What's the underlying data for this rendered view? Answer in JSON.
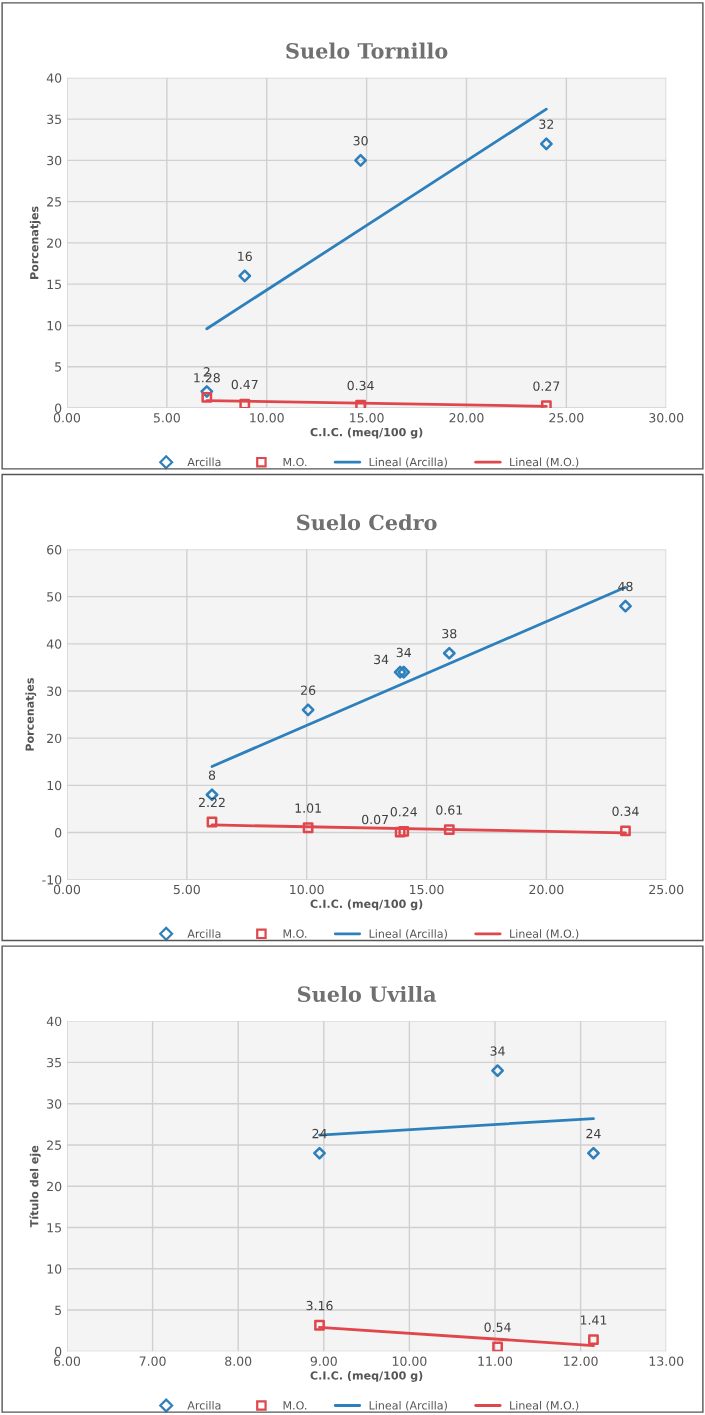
{
  "chart_data": [
    {
      "type": "scatter",
      "title": "Suelo Tornillo",
      "xlabel": "C.I.C. (meq/100 g)",
      "ylabel": "Porcenatjes",
      "xlim": [
        0,
        30
      ],
      "xticks": [
        {
          "value": 0,
          "label": "0.00"
        },
        {
          "value": 5,
          "label": "5.00"
        },
        {
          "value": 10,
          "label": "10.00"
        },
        {
          "value": 15,
          "label": "15.00"
        },
        {
          "value": 20,
          "label": "20.00"
        },
        {
          "value": 25,
          "label": "25.00"
        },
        {
          "value": 30,
          "label": "30.00"
        }
      ],
      "ylim": [
        0,
        40
      ],
      "yticks": [
        0,
        5,
        10,
        15,
        20,
        25,
        30,
        35,
        40
      ],
      "grid": true,
      "legend": "bottom",
      "series": [
        {
          "name": "Arcilla",
          "marker": "diamond",
          "color": "#2e80bd",
          "x": [
            7.0,
            8.9,
            14.7,
            24.0
          ],
          "values": [
            2,
            16,
            30,
            32
          ],
          "value_labels": [
            "2",
            "16",
            "30",
            "32"
          ]
        },
        {
          "name": "M.O.",
          "marker": "square",
          "color": "#e0474c",
          "x": [
            7.0,
            8.9,
            14.7,
            24.0
          ],
          "values": [
            1.28,
            0.47,
            0.34,
            0.27
          ],
          "value_labels": [
            "1.28",
            "0.47",
            "0.34",
            "0.27"
          ]
        },
        {
          "name": "Lineal (Arcilla)",
          "type": "line",
          "color": "#2e80bd",
          "x": [
            7.0,
            24.0
          ],
          "values": [
            9.6,
            36.2
          ]
        },
        {
          "name": "Lineal (M.O.)",
          "type": "line",
          "color": "#e0474c",
          "x": [
            7.0,
            24.0
          ],
          "values": [
            0.9,
            0.2
          ]
        }
      ]
    },
    {
      "type": "scatter",
      "title": "Suelo Cedro",
      "xlabel": "C.I.C. (meq/100 g)",
      "ylabel": "Porcenatjes",
      "xlim": [
        0,
        25
      ],
      "xticks": [
        {
          "value": 0,
          "label": "0.00"
        },
        {
          "value": 5,
          "label": "5.00"
        },
        {
          "value": 10,
          "label": "10.00"
        },
        {
          "value": 15,
          "label": "15.00"
        },
        {
          "value": 20,
          "label": "20.00"
        },
        {
          "value": 25,
          "label": "25.00"
        }
      ],
      "ylim": [
        -10,
        60
      ],
      "yticks": [
        -10,
        0,
        10,
        20,
        30,
        40,
        50,
        60
      ],
      "grid": true,
      "legend": "bottom",
      "series": [
        {
          "name": "Arcilla",
          "marker": "diamond",
          "color": "#2e80bd",
          "x": [
            6.05,
            10.06,
            13.9,
            14.05,
            15.95,
            23.3
          ],
          "values": [
            8,
            26,
            34,
            34,
            38,
            48
          ],
          "value_labels": [
            "8",
            "26",
            "34",
            "34",
            "38",
            "48"
          ]
        },
        {
          "name": "M.O.",
          "marker": "square",
          "color": "#e0474c",
          "x": [
            6.05,
            10.06,
            13.9,
            14.05,
            15.95,
            23.3
          ],
          "values": [
            2.22,
            1.01,
            0.07,
            0.24,
            0.61,
            0.34
          ],
          "value_labels": [
            "2.22",
            "1.01",
            "0.07",
            "0.24",
            "0.61",
            "0.34"
          ]
        },
        {
          "name": "Lineal (Arcilla)",
          "type": "line",
          "color": "#2e80bd",
          "x": [
            6.05,
            23.3
          ],
          "values": [
            14,
            52
          ]
        },
        {
          "name": "Lineal (M.O.)",
          "type": "line",
          "color": "#e0474c",
          "x": [
            6.05,
            23.3
          ],
          "values": [
            1.6,
            -0.1
          ]
        }
      ]
    },
    {
      "type": "scatter",
      "title": "Suelo Uvilla",
      "xlabel": "C.I.C. (meq/100 g)",
      "ylabel": "Título del eje",
      "xlim": [
        6,
        13
      ],
      "xticks": [
        {
          "value": 6,
          "label": "6.00"
        },
        {
          "value": 7,
          "label": "7.00"
        },
        {
          "value": 8,
          "label": "8.00"
        },
        {
          "value": 9,
          "label": "9.00"
        },
        {
          "value": 10,
          "label": "10.00"
        },
        {
          "value": 11,
          "label": "11.00"
        },
        {
          "value": 12,
          "label": "12.00"
        },
        {
          "value": 13,
          "label": "13.00"
        }
      ],
      "ylim": [
        0,
        40
      ],
      "yticks": [
        0,
        5,
        10,
        15,
        20,
        25,
        30,
        35,
        40
      ],
      "grid": true,
      "legend": "bottom",
      "series": [
        {
          "name": "Arcilla",
          "marker": "diamond",
          "color": "#2e80bd",
          "x": [
            8.95,
            11.03,
            12.15
          ],
          "values": [
            24,
            34,
            24
          ],
          "value_labels": [
            "24",
            "34",
            "24"
          ]
        },
        {
          "name": "M.O.",
          "marker": "square",
          "color": "#e0474c",
          "x": [
            8.95,
            11.03,
            12.15
          ],
          "values": [
            3.16,
            0.54,
            1.41
          ],
          "value_labels": [
            "3.16",
            "0.54",
            "1.41"
          ]
        },
        {
          "name": "Lineal (Arcilla)",
          "type": "line",
          "color": "#2e80bd",
          "x": [
            8.95,
            12.15
          ],
          "values": [
            26.2,
            28.2
          ]
        },
        {
          "name": "Lineal (M.O.)",
          "type": "line",
          "color": "#e0474c",
          "x": [
            8.95,
            12.15
          ],
          "values": [
            2.9,
            0.7
          ]
        }
      ]
    }
  ]
}
